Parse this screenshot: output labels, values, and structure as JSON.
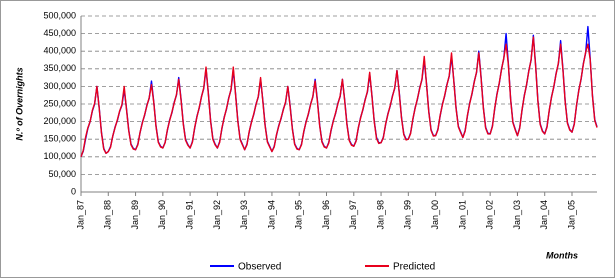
{
  "chart_data": {
    "type": "line",
    "y_label": "N.º of Overnights",
    "x_label": "Months",
    "categories": [
      "Jan_87",
      null,
      null,
      null,
      null,
      null,
      null,
      null,
      null,
      null,
      null,
      null,
      "Jan_88",
      null,
      null,
      null,
      null,
      null,
      null,
      null,
      null,
      null,
      null,
      null,
      "Jan_89",
      null,
      null,
      null,
      null,
      null,
      null,
      null,
      null,
      null,
      null,
      null,
      "Jan_90",
      null,
      null,
      null,
      null,
      null,
      null,
      null,
      null,
      null,
      null,
      null,
      "Jan_91",
      null,
      null,
      null,
      null,
      null,
      null,
      null,
      null,
      null,
      null,
      null,
      "Jan_92",
      null,
      null,
      null,
      null,
      null,
      null,
      null,
      null,
      null,
      null,
      null,
      "Jan_93",
      null,
      null,
      null,
      null,
      null,
      null,
      null,
      null,
      null,
      null,
      null,
      "Jan_94",
      null,
      null,
      null,
      null,
      null,
      null,
      null,
      null,
      null,
      null,
      null,
      "Jan_95",
      null,
      null,
      null,
      null,
      null,
      null,
      null,
      null,
      null,
      null,
      null,
      "Jan_96",
      null,
      null,
      null,
      null,
      null,
      null,
      null,
      null,
      null,
      null,
      null,
      "Jan_97",
      null,
      null,
      null,
      null,
      null,
      null,
      null,
      null,
      null,
      null,
      null,
      "Jan_98",
      null,
      null,
      null,
      null,
      null,
      null,
      null,
      null,
      null,
      null,
      null,
      "Jan_99",
      null,
      null,
      null,
      null,
      null,
      null,
      null,
      null,
      null,
      null,
      null,
      "Jan_00",
      null,
      null,
      null,
      null,
      null,
      null,
      null,
      null,
      null,
      null,
      null,
      "Jan_01",
      null,
      null,
      null,
      null,
      null,
      null,
      null,
      null,
      null,
      null,
      null,
      "Jan_02",
      null,
      null,
      null,
      null,
      null,
      null,
      null,
      null,
      null,
      null,
      null,
      "Jan_03",
      null,
      null,
      null,
      null,
      null,
      null,
      null,
      null,
      null,
      null,
      null,
      "Jan_04",
      null,
      null,
      null,
      null,
      null,
      null,
      null,
      null,
      null,
      null,
      null,
      "Jan_05",
      null,
      null,
      null,
      null,
      null,
      null,
      null,
      null,
      null,
      null,
      null
    ],
    "series": [
      {
        "name": "Observed",
        "color": "#0000ff",
        "values": [
          100000,
          116000,
          150000,
          180000,
          200000,
          230000,
          250000,
          300000,
          240000,
          170000,
          124000,
          110000,
          115000,
          129000,
          159000,
          185000,
          203000,
          229000,
          246000,
          290000,
          238000,
          176000,
          136000,
          124000,
          120000,
          136000,
          169000,
          198000,
          218000,
          247000,
          266000,
          315000,
          257000,
          188000,
          143000,
          130000,
          125000,
          141000,
          175000,
          205000,
          225000,
          255000,
          275000,
          325000,
          265000,
          195000,
          149000,
          135000,
          125000,
          143000,
          181000,
          215000,
          238000,
          271000,
          294000,
          350000,
          283000,
          204000,
          152000,
          136000,
          125000,
          143000,
          180000,
          213000,
          235000,
          268000,
          290000,
          345000,
          279000,
          202000,
          151000,
          136000,
          120000,
          136000,
          170000,
          200000,
          220000,
          250000,
          270000,
          320000,
          260000,
          190000,
          144000,
          130000,
          115000,
          130000,
          161000,
          189000,
          208000,
          235000,
          254000,
          300000,
          245000,
          180000,
          137000,
          124000,
          120000,
          136000,
          170000,
          200000,
          220000,
          250000,
          270000,
          320000,
          260000,
          190000,
          144000,
          130000,
          125000,
          141000,
          174000,
          203000,
          223000,
          252000,
          271000,
          320000,
          262000,
          193000,
          148000,
          135000,
          130000,
          146000,
          181000,
          212000,
          233000,
          263000,
          284000,
          335000,
          274000,
          202000,
          155000,
          140000,
          140000,
          156000,
          191000,
          222000,
          243000,
          273000,
          294000,
          345000,
          284000,
          212000,
          165000,
          150000,
          150000,
          168000,
          206000,
          240000,
          263000,
          296000,
          319000,
          375000,
          308000,
          229000,
          177000,
          161000,
          160000,
          178000,
          216000,
          250000,
          273000,
          306000,
          329000,
          385000,
          318000,
          239000,
          187000,
          171000,
          155000,
          175000,
          216000,
          253000,
          278000,
          314000,
          339000,
          400000,
          327000,
          241000,
          184000,
          167000,
          165000,
          188000,
          236000,
          279000,
          308000,
          350000,
          379000,
          450000,
          365000,
          265000,
          199000,
          179000,
          160000,
          183000,
          231000,
          274000,
          303000,
          345000,
          374000,
          445000,
          360000,
          260000,
          194000,
          174000,
          165000,
          186000,
          231000,
          271000,
          298000,
          337000,
          364000,
          430000,
          351000,
          258000,
          197000,
          178000,
          170000,
          194000,
          245000,
          290000,
          320000,
          365000,
          395000,
          470000,
          380000,
          275000,
          206000,
          185000
        ]
      },
      {
        "name": "Predicted",
        "color": "#e8001c",
        "values": [
          100000,
          118000,
          155000,
          182000,
          200000,
          232000,
          252000,
          300000,
          238000,
          168000,
          122000,
          110000,
          115000,
          127000,
          160000,
          183000,
          205000,
          230000,
          248000,
          300000,
          235000,
          174000,
          134000,
          122000,
          120000,
          134000,
          170000,
          196000,
          220000,
          245000,
          268000,
          305000,
          255000,
          186000,
          141000,
          128000,
          125000,
          140000,
          177000,
          203000,
          227000,
          253000,
          277000,
          320000,
          262000,
          193000,
          147000,
          133000,
          125000,
          141000,
          183000,
          213000,
          240000,
          270000,
          296000,
          355000,
          280000,
          202000,
          150000,
          134000,
          125000,
          141000,
          182000,
          211000,
          237000,
          266000,
          292000,
          355000,
          276000,
          200000,
          149000,
          134000,
          120000,
          134000,
          172000,
          198000,
          222000,
          248000,
          272000,
          325000,
          257000,
          188000,
          142000,
          128000,
          115000,
          128000,
          163000,
          187000,
          210000,
          233000,
          256000,
          300000,
          242000,
          178000,
          135000,
          122000,
          120000,
          134000,
          172000,
          198000,
          222000,
          248000,
          272000,
          315000,
          257000,
          188000,
          142000,
          128000,
          125000,
          139000,
          176000,
          201000,
          225000,
          250000,
          273000,
          320000,
          259000,
          191000,
          146000,
          133000,
          130000,
          144000,
          183000,
          210000,
          235000,
          261000,
          286000,
          340000,
          271000,
          200000,
          152000,
          138000,
          140000,
          154000,
          193000,
          220000,
          245000,
          271000,
          296000,
          345000,
          281000,
          210000,
          163000,
          148000,
          150000,
          166000,
          208000,
          238000,
          265000,
          294000,
          321000,
          385000,
          305000,
          227000,
          175000,
          159000,
          160000,
          176000,
          218000,
          248000,
          275000,
          304000,
          331000,
          395000,
          315000,
          237000,
          185000,
          169000,
          155000,
          173000,
          218000,
          251000,
          280000,
          312000,
          341000,
          395000,
          324000,
          239000,
          182000,
          165000,
          165000,
          186000,
          238000,
          277000,
          310000,
          348000,
          381000,
          420000,
          362000,
          263000,
          197000,
          177000,
          160000,
          181000,
          233000,
          272000,
          305000,
          343000,
          376000,
          440000,
          357000,
          258000,
          192000,
          172000,
          165000,
          184000,
          233000,
          269000,
          300000,
          335000,
          366000,
          420000,
          348000,
          256000,
          195000,
          176000,
          170000,
          192000,
          247000,
          288000,
          322000,
          363000,
          397000,
          420000,
          377000,
          273000,
          204000,
          183000
        ]
      }
    ],
    "ylim": [
      0,
      500000
    ],
    "yticks": [
      0,
      {
        "value": 50000,
        "label": "50,000"
      },
      {
        "value": 100000,
        "label": "100,000"
      },
      {
        "value": 150000,
        "label": "150,000"
      },
      {
        "value": 200000,
        "label": "200,000"
      },
      {
        "value": 250000,
        "label": "250,000"
      },
      {
        "value": 300000,
        "label": "300,000"
      },
      {
        "value": 350000,
        "label": "350,000"
      },
      {
        "value": 400000,
        "label": "400,000"
      },
      {
        "value": 450000,
        "label": "450,000"
      },
      {
        "value": 500000,
        "label": "500,000"
      }
    ],
    "grid": true,
    "legend": "bottom"
  }
}
